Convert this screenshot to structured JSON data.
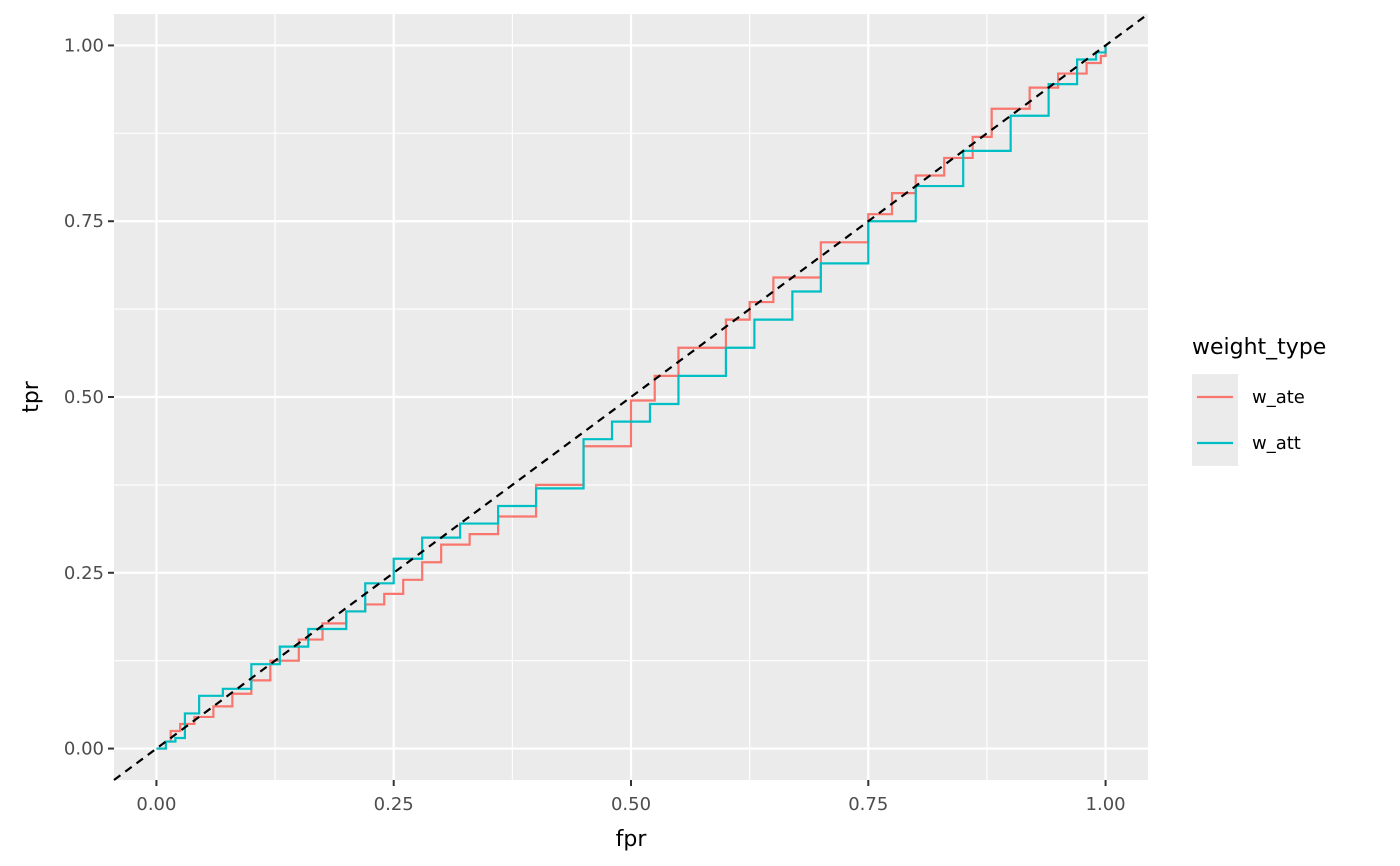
{
  "chart_data": {
    "type": "line",
    "xlabel": "fpr",
    "ylabel": "tpr",
    "xlim": [
      -0.0447,
      1.0447
    ],
    "ylim": [
      -0.0447,
      1.0447
    ],
    "x_ticks": [
      0,
      0.25,
      0.5,
      0.75,
      1
    ],
    "y_ticks": [
      0,
      0.25,
      0.5,
      0.75,
      1
    ],
    "x_tick_labels": [
      "0.00",
      "0.25",
      "0.50",
      "0.75",
      "1.00"
    ],
    "y_tick_labels": [
      "0.00",
      "0.25",
      "0.50",
      "0.75",
      "1.00"
    ],
    "grid": true,
    "legend": {
      "title": "weight_type",
      "position": "right"
    },
    "reference_line": {
      "style": "dashed",
      "color": "#000000",
      "slope": 1,
      "intercept": 0
    },
    "series": [
      {
        "name": "w_ate",
        "color": "#F8766D",
        "points": [
          [
            0.0,
            0.0
          ],
          [
            0.01,
            0.01
          ],
          [
            0.015,
            0.025
          ],
          [
            0.025,
            0.035
          ],
          [
            0.04,
            0.045
          ],
          [
            0.06,
            0.06
          ],
          [
            0.08,
            0.078
          ],
          [
            0.1,
            0.097
          ],
          [
            0.12,
            0.125
          ],
          [
            0.15,
            0.155
          ],
          [
            0.175,
            0.178
          ],
          [
            0.2,
            0.195
          ],
          [
            0.22,
            0.205
          ],
          [
            0.24,
            0.22
          ],
          [
            0.26,
            0.24
          ],
          [
            0.28,
            0.265
          ],
          [
            0.3,
            0.29
          ],
          [
            0.33,
            0.305
          ],
          [
            0.36,
            0.33
          ],
          [
            0.4,
            0.375
          ],
          [
            0.45,
            0.43
          ],
          [
            0.5,
            0.495
          ],
          [
            0.525,
            0.53
          ],
          [
            0.55,
            0.57
          ],
          [
            0.6,
            0.61
          ],
          [
            0.625,
            0.635
          ],
          [
            0.65,
            0.67
          ],
          [
            0.7,
            0.72
          ],
          [
            0.75,
            0.76
          ],
          [
            0.775,
            0.79
          ],
          [
            0.8,
            0.815
          ],
          [
            0.83,
            0.84
          ],
          [
            0.86,
            0.87
          ],
          [
            0.88,
            0.91
          ],
          [
            0.92,
            0.94
          ],
          [
            0.95,
            0.96
          ],
          [
            0.98,
            0.975
          ],
          [
            0.995,
            0.985
          ],
          [
            1.0,
            1.0
          ]
        ]
      },
      {
        "name": "w_att",
        "color": "#00BFC4",
        "points": [
          [
            0.0,
            0.0
          ],
          [
            0.01,
            0.01
          ],
          [
            0.02,
            0.015
          ],
          [
            0.03,
            0.05
          ],
          [
            0.045,
            0.075
          ],
          [
            0.07,
            0.085
          ],
          [
            0.1,
            0.12
          ],
          [
            0.13,
            0.145
          ],
          [
            0.16,
            0.17
          ],
          [
            0.2,
            0.195
          ],
          [
            0.22,
            0.235
          ],
          [
            0.25,
            0.27
          ],
          [
            0.28,
            0.3
          ],
          [
            0.32,
            0.32
          ],
          [
            0.36,
            0.345
          ],
          [
            0.4,
            0.37
          ],
          [
            0.45,
            0.44
          ],
          [
            0.48,
            0.465
          ],
          [
            0.52,
            0.49
          ],
          [
            0.55,
            0.53
          ],
          [
            0.6,
            0.57
          ],
          [
            0.63,
            0.61
          ],
          [
            0.67,
            0.65
          ],
          [
            0.7,
            0.69
          ],
          [
            0.75,
            0.75
          ],
          [
            0.8,
            0.8
          ],
          [
            0.85,
            0.85
          ],
          [
            0.9,
            0.9
          ],
          [
            0.94,
            0.945
          ],
          [
            0.97,
            0.98
          ],
          [
            0.99,
            0.99
          ],
          [
            1.0,
            1.0
          ]
        ]
      }
    ]
  }
}
